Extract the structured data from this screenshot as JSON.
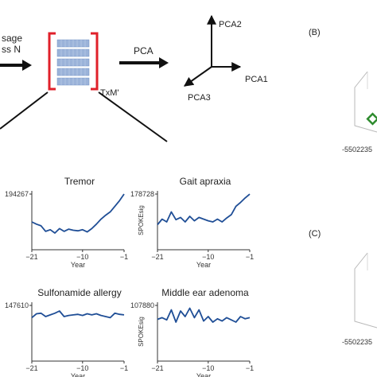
{
  "top": {
    "input_text_line1": "sage",
    "input_text_line2": "ss N",
    "matrix_label": "TxM'",
    "pca_label": "PCA",
    "axis_pca1": "PCA1",
    "axis_pca2": "PCA2",
    "axis_pca3": "PCA3"
  },
  "panels": {
    "b_label": "(B)",
    "c_label": "(C)",
    "b_tick": "-5502235",
    "c_tick": "-5502235"
  },
  "colors": {
    "line": "#1f4e96",
    "bracket": "#e0202a",
    "matrix_row": "#9bb3d9",
    "marker": "#2e8b2e"
  },
  "chart_data": [
    {
      "type": "line",
      "title": "Tremor",
      "ylabel": "",
      "xlabel": "Year",
      "ymax_label": "194267",
      "x_ticks": [
        "−21",
        "−10",
        "−1"
      ],
      "xlim": [
        -21,
        -1
      ],
      "x": [
        -21,
        -20,
        -19,
        -18,
        -17,
        -16,
        -15,
        -14,
        -13,
        -12,
        -11,
        -10,
        -9,
        -8,
        -7,
        -6,
        -5,
        -4,
        -3,
        -2,
        -1
      ],
      "values": [
        0.5,
        0.46,
        0.43,
        0.33,
        0.36,
        0.3,
        0.38,
        0.33,
        0.37,
        0.35,
        0.34,
        0.36,
        0.32,
        0.38,
        0.46,
        0.55,
        0.62,
        0.68,
        0.78,
        0.88,
        1.0
      ],
      "ylim": [
        0,
        1
      ]
    },
    {
      "type": "line",
      "title": "Gait apraxia",
      "ylabel": "SPOKEsig",
      "xlabel": "Year",
      "ymax_label": "178728",
      "x_ticks": [
        "−21",
        "−10",
        "−1"
      ],
      "xlim": [
        -21,
        -1
      ],
      "x": [
        -21,
        -20,
        -19,
        -18,
        -17,
        -16,
        -15,
        -14,
        -13,
        -12,
        -11,
        -10,
        -9,
        -8,
        -7,
        -6,
        -5,
        -4,
        -3,
        -2,
        -1
      ],
      "values": [
        0.45,
        0.55,
        0.5,
        0.68,
        0.54,
        0.58,
        0.5,
        0.6,
        0.52,
        0.58,
        0.55,
        0.52,
        0.5,
        0.55,
        0.5,
        0.57,
        0.63,
        0.78,
        0.85,
        0.93,
        1.0
      ],
      "ylim": [
        0,
        1
      ]
    },
    {
      "type": "line",
      "title": "Sulfonamide allergy",
      "ylabel": "",
      "xlabel": "Year",
      "ymax_label": "147610",
      "x_ticks": [
        "−21",
        "−10",
        "−1"
      ],
      "xlim": [
        -21,
        -1
      ],
      "x": [
        -21,
        -20,
        -19,
        -18,
        -17,
        -16,
        -15,
        -14,
        -13,
        -12,
        -11,
        -10,
        -9,
        -8,
        -7,
        -6,
        -5,
        -4,
        -3,
        -2,
        -1
      ],
      "values": [
        0.78,
        0.85,
        0.86,
        0.8,
        0.83,
        0.86,
        0.9,
        0.8,
        0.82,
        0.83,
        0.84,
        0.82,
        0.85,
        0.83,
        0.85,
        0.82,
        0.8,
        0.78,
        0.86,
        0.84,
        0.83
      ],
      "ylim": [
        0,
        1
      ]
    },
    {
      "type": "line",
      "title": "Middle ear adenoma",
      "ylabel": "SPOKEsig",
      "xlabel": "Year",
      "ymax_label": "107880",
      "x_ticks": [
        "−21",
        "−10",
        "−1"
      ],
      "xlim": [
        -21,
        -1
      ],
      "x": [
        -21,
        -20,
        -19,
        -18,
        -17,
        -16,
        -15,
        -14,
        -13,
        -12,
        -11,
        -10,
        -9,
        -8,
        -7,
        -6,
        -5,
        -4,
        -3,
        -2,
        -1
      ],
      "values": [
        0.75,
        0.78,
        0.74,
        0.92,
        0.7,
        0.9,
        0.8,
        0.95,
        0.78,
        0.92,
        0.72,
        0.8,
        0.7,
        0.76,
        0.72,
        0.78,
        0.74,
        0.7,
        0.8,
        0.76,
        0.78
      ],
      "ylim": [
        0,
        1
      ]
    }
  ]
}
